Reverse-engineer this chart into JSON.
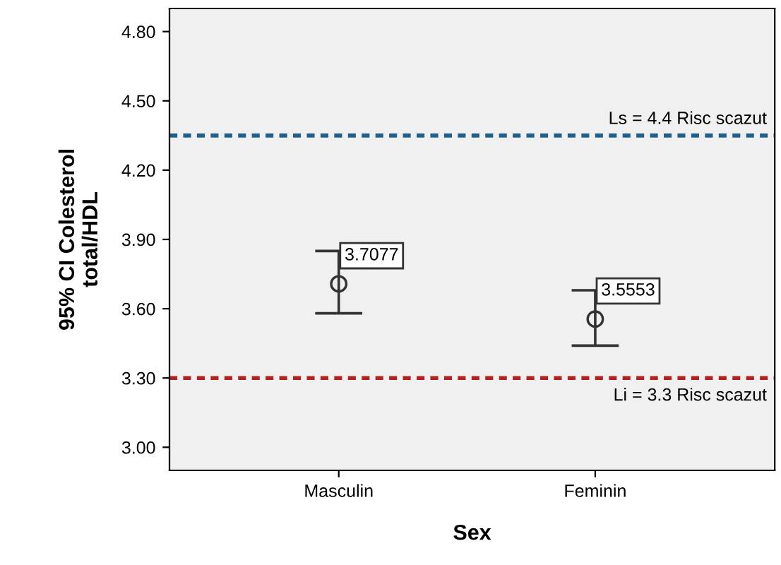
{
  "chart_data": {
    "type": "scatter",
    "xlabel": "Sex",
    "ylabel": "95% CI Colesterol\ntotal/HDL",
    "categories": [
      "Masculin",
      "Feminin"
    ],
    "series": [
      {
        "color": "#333333",
        "values": [
          3.7077,
          3.5553
        ],
        "errors": [
          [
            3.58,
            3.85
          ],
          [
            3.44,
            3.68
          ]
        ]
      }
    ],
    "marker": "circle",
    "data_labels": true,
    "ylim": [
      2.9,
      4.9
    ],
    "yticks": [
      {
        "value": 3.0,
        "label": "3.00"
      },
      {
        "value": 3.3,
        "label": "3.30"
      },
      {
        "value": 3.6,
        "label": "3.60"
      },
      {
        "value": 3.9,
        "label": "3.90"
      },
      {
        "value": 4.2,
        "label": "4.20"
      },
      {
        "value": 4.5,
        "label": "4.50"
      },
      {
        "value": 4.8,
        "label": "4.80"
      }
    ],
    "ref_lines": [
      {
        "axis": "y",
        "value": 4.35,
        "label": "Ls = 4.4 Risc scazut",
        "color": "#1f5f8b",
        "line_style": "dotted"
      },
      {
        "axis": "y",
        "value": 3.3,
        "label": "Li = 3.3 Risc scazut",
        "color": "#b22222",
        "line_style": "dotted"
      }
    ],
    "grid": false,
    "legend": false
  }
}
